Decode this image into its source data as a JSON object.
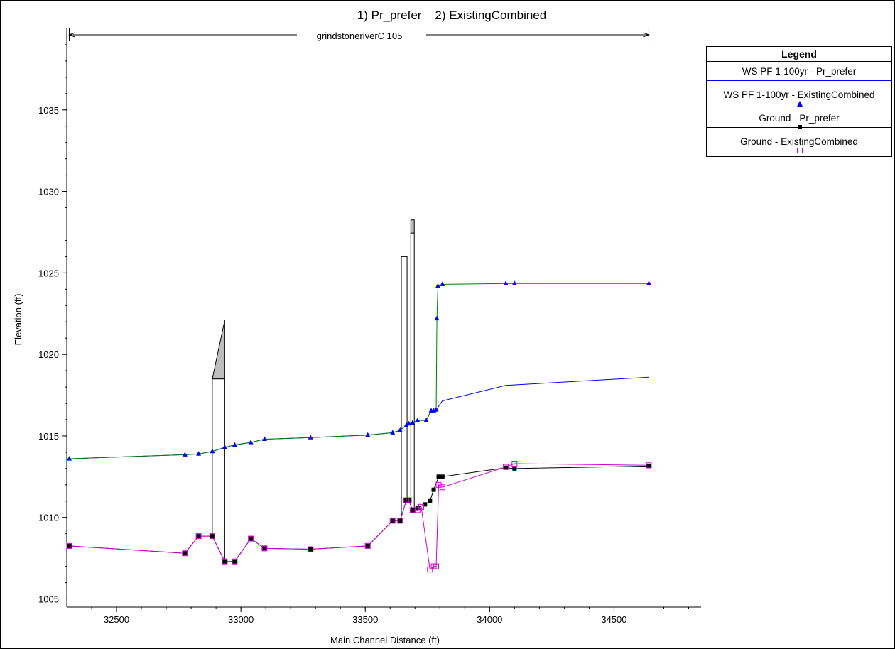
{
  "chart_data": {
    "type": "line",
    "title": "1) Pr_prefer    2) ExistingCombined",
    "reach_label": "grindstoneriverC 105",
    "xlabel": "Main Channel Distance (ft)",
    "ylabel": "Elevation (ft)",
    "xlim": [
      32300,
      34850
    ],
    "ylim": [
      1004.5,
      1040
    ],
    "xticks": [
      32500,
      33000,
      33500,
      34000,
      34500
    ],
    "yticks": [
      1005,
      1010,
      1015,
      1020,
      1025,
      1030,
      1035
    ],
    "grid": false,
    "legend_position": "right",
    "legend_title": "Legend",
    "series": [
      {
        "name": "WS  PF 1-100yr - Pr_prefer",
        "color": "#0000ff",
        "marker": "none",
        "x": [
          32310,
          32775,
          32830,
          32885,
          32935,
          32975,
          33040,
          33095,
          33280,
          33510,
          33610,
          33640,
          33665,
          33675,
          33690,
          33710,
          33745,
          33765,
          33785,
          33810,
          34065,
          34640
        ],
        "y": [
          1013.6,
          1013.85,
          1013.9,
          1014.05,
          1014.3,
          1014.45,
          1014.6,
          1014.8,
          1014.9,
          1015.05,
          1015.2,
          1015.35,
          1015.65,
          1015.75,
          1015.8,
          1015.95,
          1015.95,
          1016.55,
          1016.6,
          1017.15,
          1018.1,
          1018.6
        ]
      },
      {
        "name": "WS  PF 1-100yr - ExistingCombined",
        "color": "#008000",
        "marker": "triangle",
        "marker_color": "#0000ff",
        "x": [
          32310,
          32775,
          32830,
          32885,
          32935,
          32975,
          33040,
          33095,
          33280,
          33510,
          33610,
          33640,
          33665,
          33675,
          33690,
          33710,
          33745,
          33765,
          33775,
          33785,
          33788,
          33792,
          33810,
          34065,
          34100,
          34640
        ],
        "y": [
          1013.6,
          1013.85,
          1013.9,
          1014.05,
          1014.3,
          1014.45,
          1014.6,
          1014.8,
          1014.9,
          1015.05,
          1015.2,
          1015.35,
          1015.65,
          1015.75,
          1015.8,
          1015.95,
          1015.95,
          1016.55,
          1016.55,
          1016.6,
          1022.2,
          1024.2,
          1024.3,
          1024.35,
          1024.35,
          1024.35
        ]
      },
      {
        "name": "Ground - Pr_prefer",
        "color": "#000000",
        "marker": "filled-square",
        "x": [
          32310,
          32775,
          32830,
          32885,
          32935,
          32975,
          33040,
          33095,
          33280,
          33510,
          33610,
          33640,
          33665,
          33675,
          33690,
          33710,
          33740,
          33760,
          33775,
          33795,
          33810,
          34065,
          34100,
          34640
        ],
        "y": [
          1008.25,
          1007.8,
          1008.85,
          1008.85,
          1007.3,
          1007.3,
          1008.7,
          1008.1,
          1008.05,
          1008.25,
          1009.8,
          1009.8,
          1011.05,
          1011.05,
          1010.45,
          1010.6,
          1010.8,
          1011.0,
          1011.7,
          1012.5,
          1012.5,
          1013.05,
          1013.0,
          1013.15
        ]
      },
      {
        "name": "Ground - ExistingCombined",
        "color": "#d000d0",
        "marker": "open-square",
        "x": [
          32310,
          32775,
          32830,
          32885,
          32935,
          32975,
          33040,
          33095,
          33280,
          33510,
          33610,
          33640,
          33665,
          33675,
          33690,
          33710,
          33725,
          33760,
          33775,
          33785,
          33795,
          33810,
          34065,
          34100,
          34640
        ],
        "y": [
          1008.25,
          1007.8,
          1008.85,
          1008.85,
          1007.3,
          1007.3,
          1008.7,
          1008.1,
          1008.05,
          1008.25,
          1009.8,
          1009.8,
          1011.05,
          1011.05,
          1010.45,
          1010.45,
          1010.65,
          1006.8,
          1007.0,
          1007.0,
          1012.0,
          1011.85,
          1013.1,
          1013.3,
          1013.2
        ]
      }
    ],
    "structures": [
      {
        "x0": 32885,
        "x1": 32935,
        "deck_bottom": 1018.5,
        "deck_top_left": 1018.5,
        "deck_top_right": 1022.1,
        "shaded_from": 1018.5
      },
      {
        "x0": 33645,
        "x1": 33668,
        "deck_bottom": 1026.0,
        "deck_top_left": 1026.0,
        "deck_top_right": 1026.0,
        "shaded_from": 1026.0
      },
      {
        "x0": 33683,
        "x1": 33697,
        "deck_bottom": 1027.45,
        "deck_top_left": 1028.25,
        "deck_top_right": 1028.25,
        "shaded_from": 1027.45
      }
    ]
  },
  "legend": {
    "title": "Legend",
    "items": [
      {
        "label": "WS  PF 1-100yr - Pr_prefer",
        "line_color": "#0000ff",
        "marker": "none"
      },
      {
        "label": "WS  PF 1-100yr - ExistingCombined",
        "line_color": "#008000",
        "marker": "triangle"
      },
      {
        "label": "Ground - Pr_prefer",
        "line_color": "#000000",
        "marker": "filled-square"
      },
      {
        "label": "Ground - ExistingCombined",
        "line_color": "#d000d0",
        "marker": "open-square"
      }
    ]
  }
}
